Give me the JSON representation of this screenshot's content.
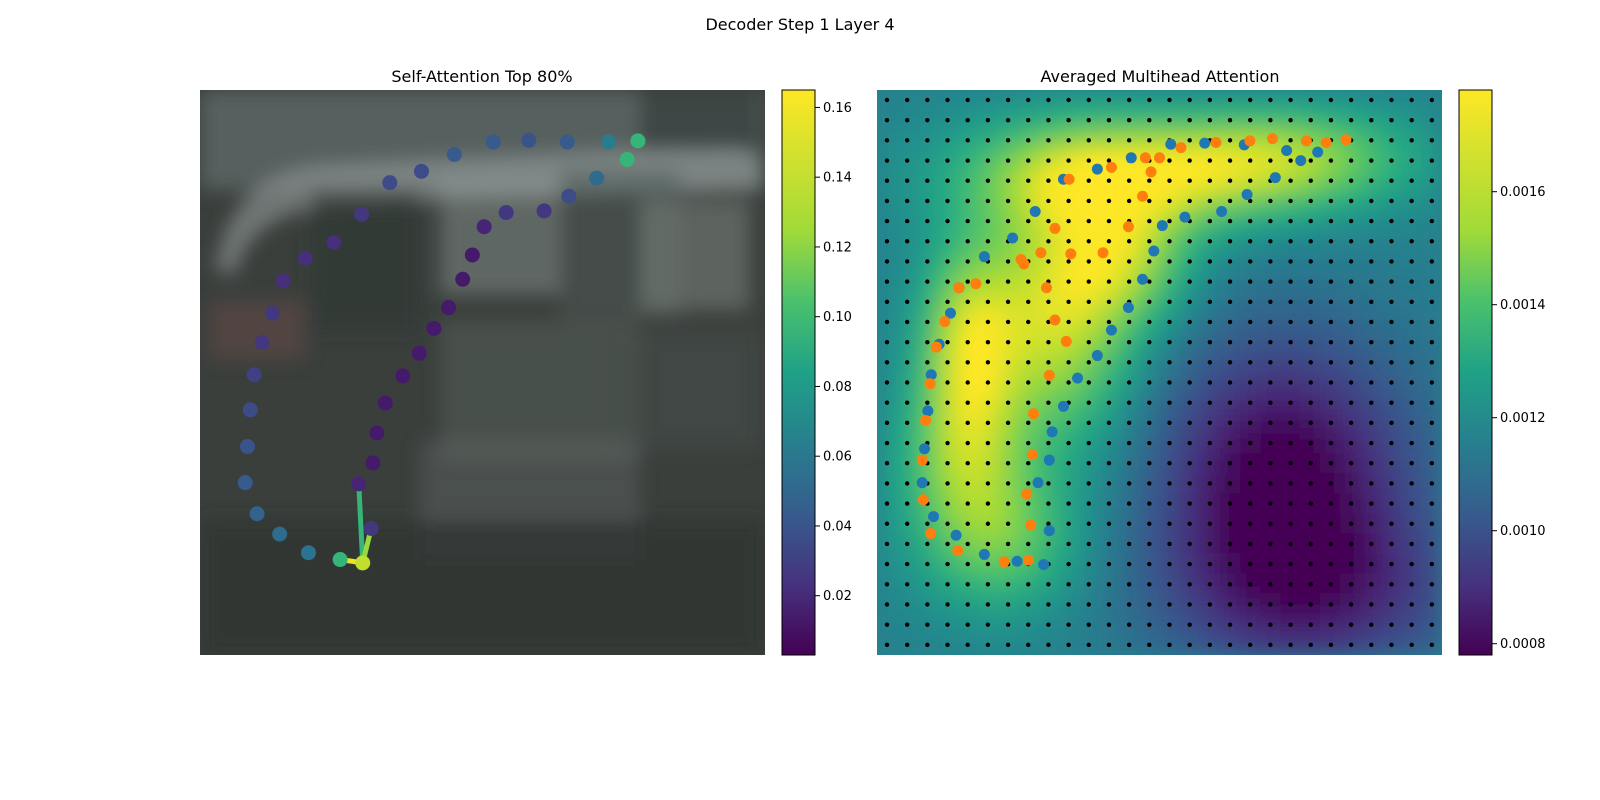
{
  "figure": {
    "suptitle": "Decoder Step 1 Layer 4"
  },
  "chart_data": [
    {
      "type": "scatter",
      "title": "Self-Attention Top 80%",
      "xlim": [
        0,
        100
      ],
      "ylim": [
        0,
        100
      ],
      "grid": false,
      "colorbar": {
        "colormap": "viridis",
        "range": [
          0.003,
          0.165
        ],
        "ticks": [
          "0.02",
          "0.04",
          "0.06",
          "0.08",
          "0.10",
          "0.12",
          "0.14",
          "0.16"
        ],
        "tick_values": [
          0.02,
          0.04,
          0.06,
          0.08,
          0.1,
          0.12,
          0.14,
          0.16
        ]
      },
      "points": [
        {
          "x": 77.5,
          "y": 91.0,
          "v": 0.11
        },
        {
          "x": 72.3,
          "y": 90.8,
          "v": 0.07
        },
        {
          "x": 65.0,
          "y": 90.8,
          "v": 0.05
        },
        {
          "x": 58.2,
          "y": 91.1,
          "v": 0.045
        },
        {
          "x": 51.9,
          "y": 90.8,
          "v": 0.05
        },
        {
          "x": 45.0,
          "y": 88.6,
          "v": 0.05
        },
        {
          "x": 39.2,
          "y": 85.6,
          "v": 0.04
        },
        {
          "x": 33.6,
          "y": 83.6,
          "v": 0.04
        },
        {
          "x": 28.6,
          "y": 78.0,
          "v": 0.03
        },
        {
          "x": 23.7,
          "y": 73.0,
          "v": 0.025
        },
        {
          "x": 18.6,
          "y": 70.2,
          "v": 0.025
        },
        {
          "x": 14.7,
          "y": 66.2,
          "v": 0.025
        },
        {
          "x": 12.8,
          "y": 60.5,
          "v": 0.03
        },
        {
          "x": 11.0,
          "y": 55.3,
          "v": 0.03
        },
        {
          "x": 9.6,
          "y": 49.6,
          "v": 0.035
        },
        {
          "x": 8.9,
          "y": 43.4,
          "v": 0.04
        },
        {
          "x": 8.4,
          "y": 36.9,
          "v": 0.045
        },
        {
          "x": 8.0,
          "y": 30.5,
          "v": 0.05
        },
        {
          "x": 10.1,
          "y": 25.0,
          "v": 0.055
        },
        {
          "x": 14.1,
          "y": 21.4,
          "v": 0.06
        },
        {
          "x": 19.2,
          "y": 18.1,
          "v": 0.065
        },
        {
          "x": 24.8,
          "y": 16.9,
          "v": 0.11
        },
        {
          "x": 28.8,
          "y": 16.3,
          "v": 0.15
        },
        {
          "x": 30.3,
          "y": 22.4,
          "v": 0.03
        },
        {
          "x": 28.1,
          "y": 30.3,
          "v": 0.02
        },
        {
          "x": 30.6,
          "y": 34.0,
          "v": 0.015
        },
        {
          "x": 31.3,
          "y": 39.3,
          "v": 0.015
        },
        {
          "x": 32.8,
          "y": 44.6,
          "v": 0.015
        },
        {
          "x": 35.9,
          "y": 49.4,
          "v": 0.015
        },
        {
          "x": 38.8,
          "y": 53.4,
          "v": 0.015
        },
        {
          "x": 41.4,
          "y": 57.8,
          "v": 0.015
        },
        {
          "x": 44.0,
          "y": 61.5,
          "v": 0.015
        },
        {
          "x": 46.5,
          "y": 66.5,
          "v": 0.015
        },
        {
          "x": 48.2,
          "y": 70.8,
          "v": 0.015
        },
        {
          "x": 50.3,
          "y": 75.8,
          "v": 0.02
        },
        {
          "x": 54.2,
          "y": 78.3,
          "v": 0.03
        },
        {
          "x": 60.9,
          "y": 78.6,
          "v": 0.03
        },
        {
          "x": 65.3,
          "y": 81.2,
          "v": 0.04
        },
        {
          "x": 70.2,
          "y": 84.4,
          "v": 0.06
        },
        {
          "x": 75.6,
          "y": 87.7,
          "v": 0.11
        }
      ],
      "edges": [
        {
          "from": 22,
          "to": 21,
          "v": 0.16
        },
        {
          "from": 22,
          "to": 24,
          "v": 0.11
        },
        {
          "from": 22,
          "to": 23,
          "v": 0.14
        }
      ]
    },
    {
      "type": "heatmap",
      "title": "Averaged Multihead Attention",
      "xlim": [
        0,
        100
      ],
      "ylim": [
        0,
        100
      ],
      "grid": false,
      "colorbar": {
        "colormap": "viridis",
        "range": [
          0.00078,
          0.00178
        ],
        "ticks": [
          "0.0008",
          "0.0010",
          "0.0012",
          "0.0014",
          "0.0016"
        ],
        "tick_values": [
          0.0008,
          0.001,
          0.0012,
          0.0014,
          0.0016
        ]
      },
      "colors": {
        "series_a": "#1f77b4",
        "series_b": "#ff7f0e",
        "grid_dots": "#000000"
      },
      "hotspots": [
        {
          "x": 45.0,
          "y": 85.0,
          "sx": 20,
          "sy": 7,
          "w": 0.0005
        },
        {
          "x": 32.0,
          "y": 60.0,
          "sx": 10,
          "sy": 16,
          "w": 0.00048
        },
        {
          "x": 16.0,
          "y": 55.0,
          "sx": 6,
          "sy": 12,
          "w": 0.0004
        },
        {
          "x": 22.0,
          "y": 20.0,
          "sx": 10,
          "sy": 9,
          "w": 0.0003
        },
        {
          "x": 75.0,
          "y": 88.0,
          "sx": 15,
          "sy": 6,
          "w": 0.00032
        },
        {
          "x": 45.0,
          "y": 70.0,
          "sx": 8,
          "sy": 8,
          "w": 0.0003
        },
        {
          "x": 15.0,
          "y": 35.0,
          "sx": 8,
          "sy": 10,
          "w": 0.0003
        },
        {
          "x": 72.0,
          "y": 30.0,
          "sx": 16,
          "sy": 18,
          "w": -0.00048
        },
        {
          "x": 80.0,
          "y": 10.0,
          "sx": 20,
          "sy": 10,
          "w": -0.0002
        }
      ],
      "series_a": [
        {
          "x": 78.0,
          "y": 89.0
        },
        {
          "x": 72.5,
          "y": 89.3
        },
        {
          "x": 65.0,
          "y": 90.3
        },
        {
          "x": 58.0,
          "y": 90.6
        },
        {
          "x": 52.0,
          "y": 90.4
        },
        {
          "x": 45.0,
          "y": 88.0
        },
        {
          "x": 39.0,
          "y": 86.0
        },
        {
          "x": 33.0,
          "y": 84.2
        },
        {
          "x": 28.0,
          "y": 78.5
        },
        {
          "x": 24.0,
          "y": 73.8
        },
        {
          "x": 19.0,
          "y": 70.5
        },
        {
          "x": 14.5,
          "y": 65.0
        },
        {
          "x": 13.0,
          "y": 60.5
        },
        {
          "x": 11.0,
          "y": 55.0
        },
        {
          "x": 9.6,
          "y": 49.6
        },
        {
          "x": 9.0,
          "y": 43.2
        },
        {
          "x": 8.4,
          "y": 36.5
        },
        {
          "x": 8.0,
          "y": 30.5
        },
        {
          "x": 10.0,
          "y": 24.5
        },
        {
          "x": 14.0,
          "y": 21.2
        },
        {
          "x": 19.0,
          "y": 17.8
        },
        {
          "x": 24.8,
          "y": 16.6
        },
        {
          "x": 29.5,
          "y": 16.0
        },
        {
          "x": 30.5,
          "y": 22.0
        },
        {
          "x": 28.5,
          "y": 30.5
        },
        {
          "x": 30.5,
          "y": 34.5
        },
        {
          "x": 31.0,
          "y": 39.5
        },
        {
          "x": 33.0,
          "y": 44.0
        },
        {
          "x": 35.5,
          "y": 49.0
        },
        {
          "x": 39.0,
          "y": 53.0
        },
        {
          "x": 41.5,
          "y": 57.5
        },
        {
          "x": 44.5,
          "y": 61.5
        },
        {
          "x": 47.0,
          "y": 66.5
        },
        {
          "x": 49.0,
          "y": 71.5
        },
        {
          "x": 50.5,
          "y": 76.0
        },
        {
          "x": 54.5,
          "y": 77.5
        },
        {
          "x": 61.0,
          "y": 78.5
        },
        {
          "x": 65.5,
          "y": 81.5
        },
        {
          "x": 70.5,
          "y": 84.5
        },
        {
          "x": 75.0,
          "y": 87.5
        }
      ],
      "series_b": [
        {
          "x": 83.0,
          "y": 91.2
        },
        {
          "x": 79.5,
          "y": 90.7
        },
        {
          "x": 76.0,
          "y": 91.0
        },
        {
          "x": 70.0,
          "y": 91.4
        },
        {
          "x": 66.0,
          "y": 91.0
        },
        {
          "x": 60.0,
          "y": 90.7
        },
        {
          "x": 53.8,
          "y": 89.8
        },
        {
          "x": 47.5,
          "y": 88.0
        },
        {
          "x": 41.5,
          "y": 86.3
        },
        {
          "x": 34.0,
          "y": 84.2
        },
        {
          "x": 31.5,
          "y": 75.5
        },
        {
          "x": 29.0,
          "y": 71.2
        },
        {
          "x": 25.5,
          "y": 70.0
        },
        {
          "x": 17.5,
          "y": 65.7
        },
        {
          "x": 14.5,
          "y": 65.0
        },
        {
          "x": 12.0,
          "y": 59.0
        },
        {
          "x": 10.5,
          "y": 54.5
        },
        {
          "x": 9.4,
          "y": 48.0
        },
        {
          "x": 8.6,
          "y": 41.5
        },
        {
          "x": 8.0,
          "y": 34.5
        },
        {
          "x": 8.2,
          "y": 27.5
        },
        {
          "x": 9.5,
          "y": 21.5
        },
        {
          "x": 14.3,
          "y": 18.5
        },
        {
          "x": 22.5,
          "y": 16.5
        },
        {
          "x": 26.8,
          "y": 16.8
        },
        {
          "x": 27.2,
          "y": 23.0
        },
        {
          "x": 26.5,
          "y": 28.5
        },
        {
          "x": 27.5,
          "y": 35.5
        },
        {
          "x": 27.7,
          "y": 42.7
        },
        {
          "x": 30.5,
          "y": 49.5
        },
        {
          "x": 33.5,
          "y": 55.5
        },
        {
          "x": 31.5,
          "y": 59.3
        },
        {
          "x": 30.0,
          "y": 65.0
        },
        {
          "x": 26.0,
          "y": 69.2
        },
        {
          "x": 34.3,
          "y": 71.0
        },
        {
          "x": 40.0,
          "y": 71.2
        },
        {
          "x": 44.5,
          "y": 75.8
        },
        {
          "x": 47.0,
          "y": 81.2
        },
        {
          "x": 48.5,
          "y": 85.5
        },
        {
          "x": 50.0,
          "y": 88.0
        }
      ]
    }
  ]
}
